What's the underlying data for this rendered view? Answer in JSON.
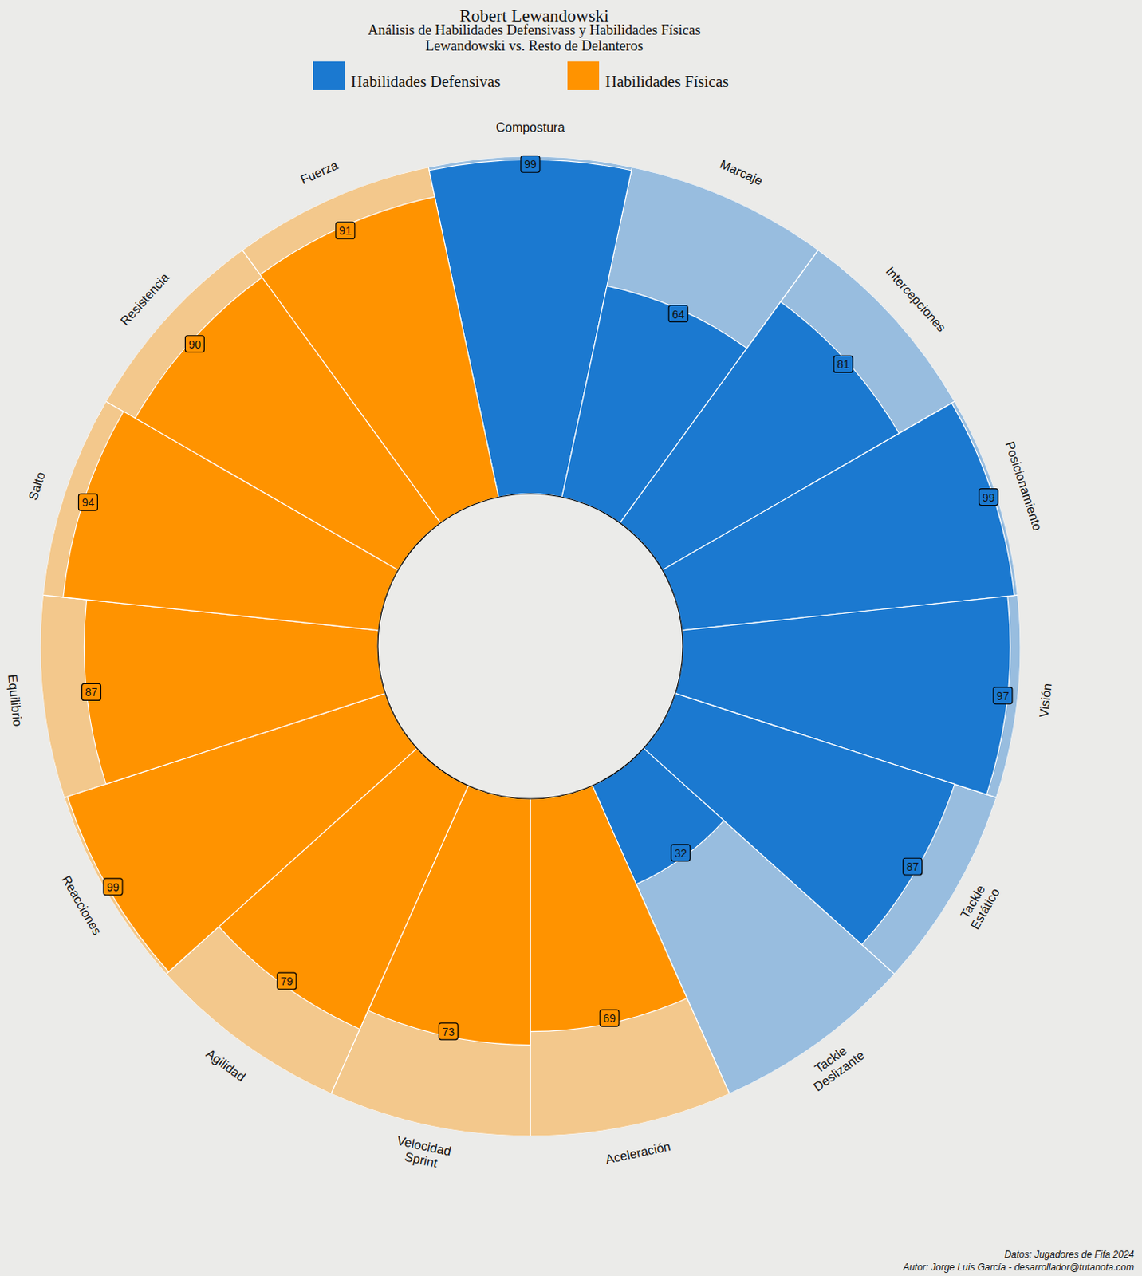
{
  "chart_data": {
    "type": "radial_bar",
    "title": "Robert Lewandowski",
    "subtitle": [
      "Análisis de Habilidades Defensivass y Habilidades Físicas",
      "Lewandowski vs. Resto de Delanteros"
    ],
    "categories": [
      "Compostura",
      "Marcaje",
      "Intercepciones",
      "Posicionamiento",
      "Visión",
      "Tackle Estático",
      "Tackle Deslizante",
      "Aceleración",
      "Velocidad Sprint",
      "Agilidad",
      "Reacciones",
      "Equilibrio",
      "Salto",
      "Resistencia",
      "Fuerza"
    ],
    "series": [
      {
        "name": "Habilidades Defensivas",
        "color": "#1b79d0",
        "values": [
          99,
          64,
          81,
          99,
          97,
          87,
          32,
          null,
          null,
          null,
          null,
          null,
          null,
          null,
          null
        ],
        "reference_values": [
          100,
          100,
          100,
          100,
          100,
          100,
          100,
          null,
          null,
          null,
          null,
          null,
          null,
          null,
          null
        ]
      },
      {
        "name": "Habilidades Físicas",
        "color": "#ff9300",
        "values": [
          null,
          null,
          null,
          null,
          null,
          null,
          null,
          69,
          73,
          79,
          99,
          87,
          94,
          90,
          91
        ],
        "reference_values": [
          null,
          null,
          null,
          null,
          null,
          null,
          null,
          100,
          100,
          100,
          100,
          100,
          100,
          100,
          100
        ]
      }
    ],
    "ylim": [
      0,
      100
    ],
    "data_labels": true,
    "tick_labels": false,
    "legend": "top",
    "footer": [
      "Datos: Jugadores de Fifa 2024",
      "Autor: Jorge Luis García - desarrollador@tutanota.com"
    ]
  }
}
